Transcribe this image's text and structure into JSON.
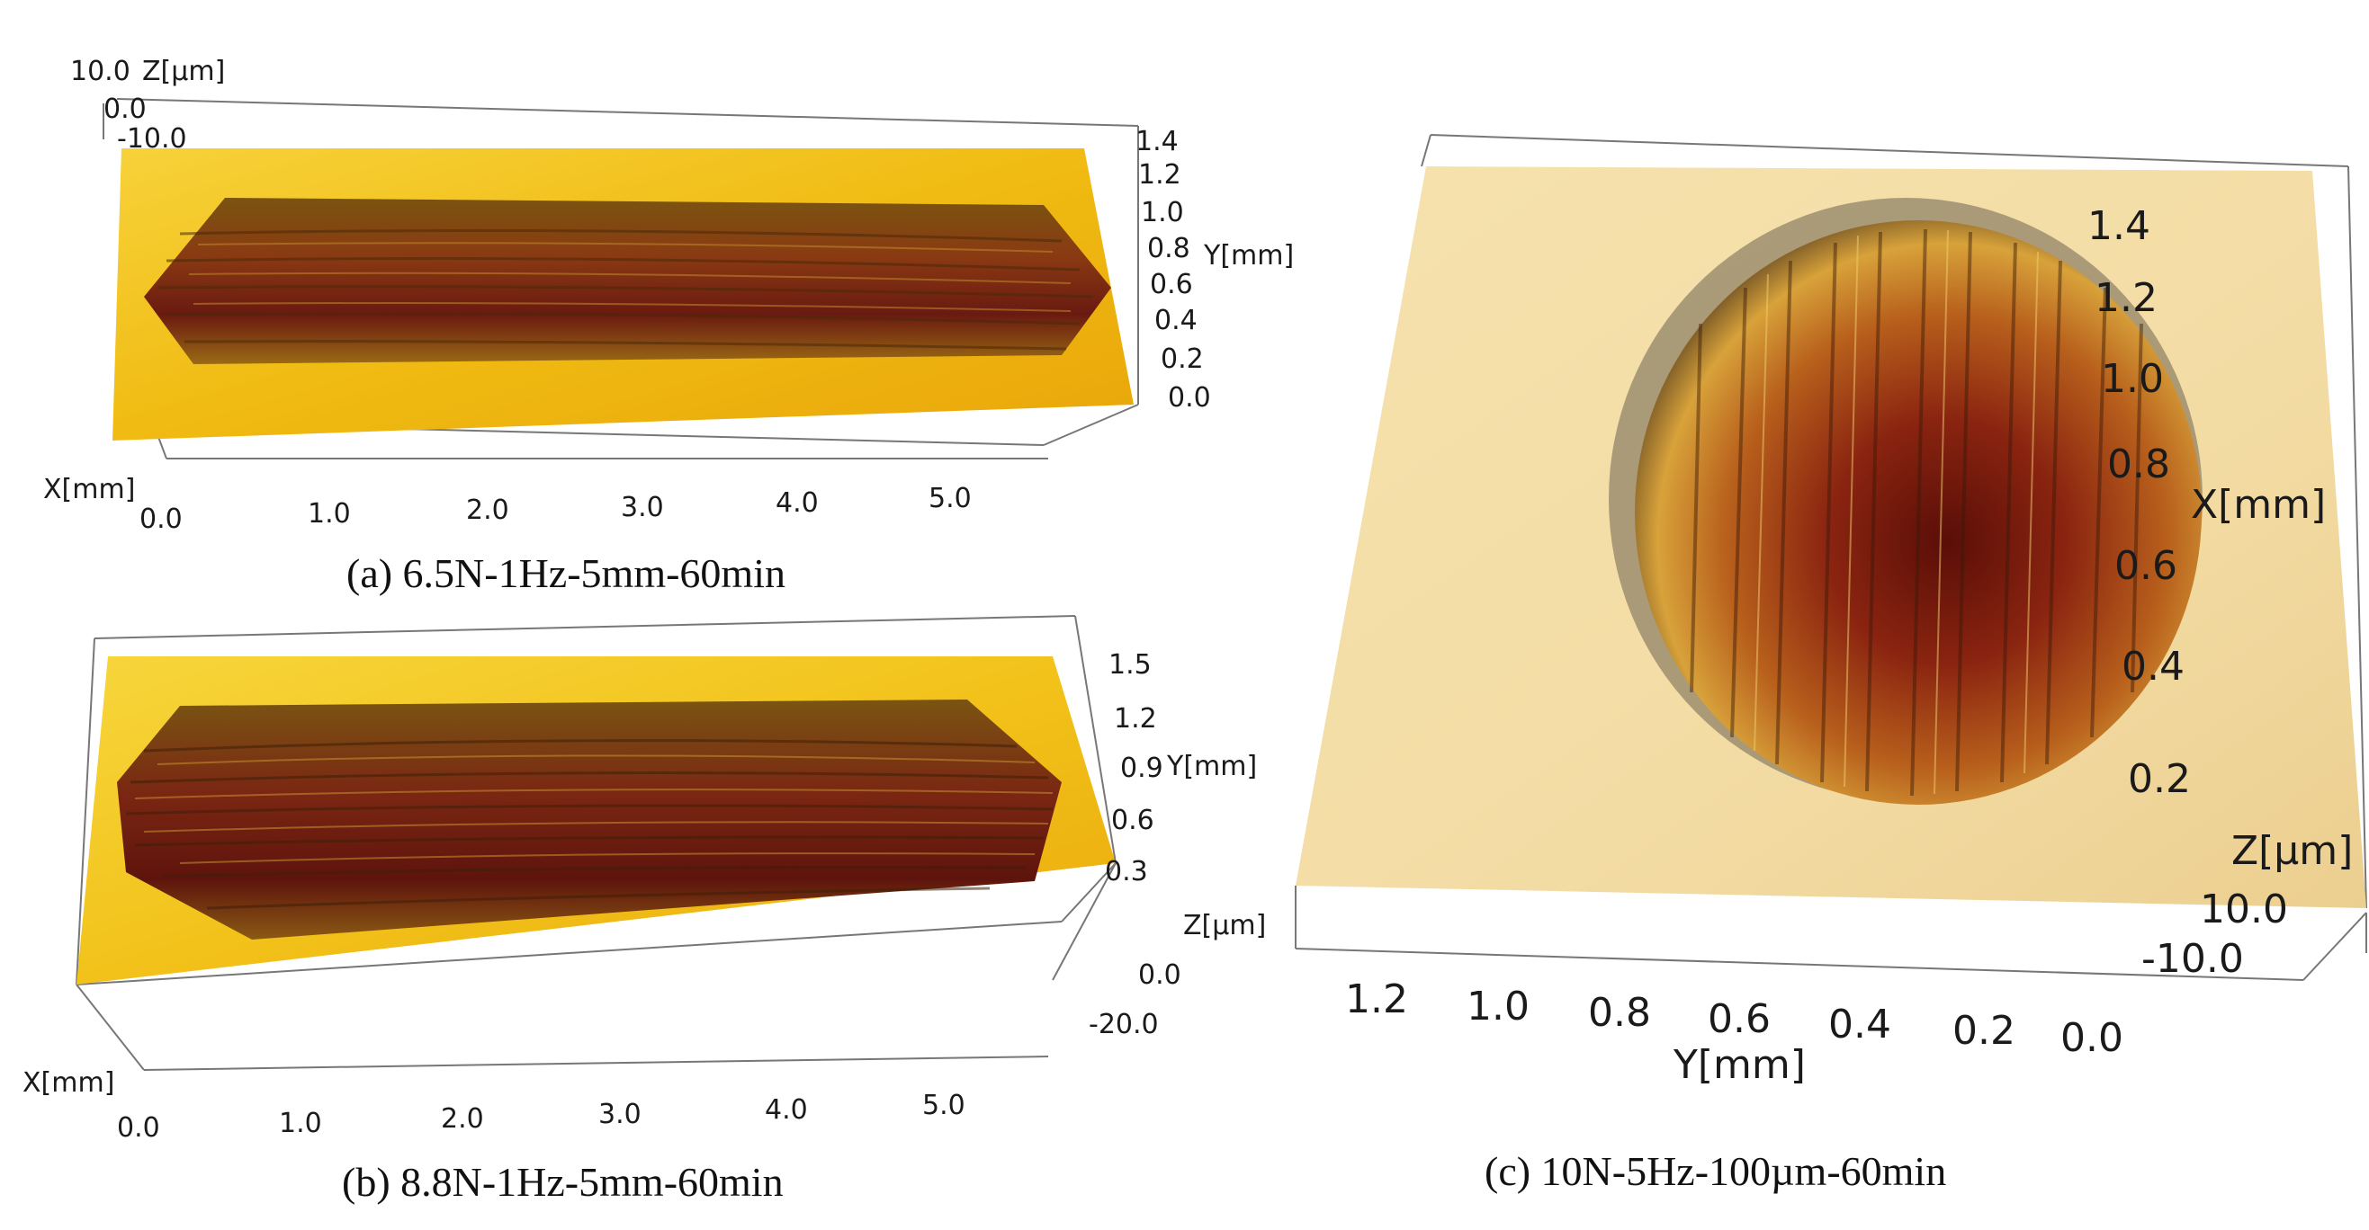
{
  "panels": {
    "a": {
      "caption": "(a) 6.5N-1Hz-5mm-60min",
      "z_axis": {
        "label": "Z[µm]",
        "ticks": [
          "10.0",
          "0.0",
          "-10.0"
        ]
      },
      "y_axis": {
        "label": "Y[mm]",
        "ticks": [
          "1.4",
          "1.2",
          "1.0",
          "0.8",
          "0.6",
          "0.4",
          "0.2",
          "0.0"
        ]
      },
      "x_axis": {
        "label": "X[mm]",
        "ticks": [
          "0.0",
          "1.0",
          "2.0",
          "3.0",
          "4.0",
          "5.0"
        ]
      }
    },
    "b": {
      "caption": "(b) 8.8N-1Hz-5mm-60min",
      "y_axis": {
        "label": "Y[mm]",
        "ticks": [
          "1.5",
          "1.2",
          "0.9",
          "0.6",
          "0.3"
        ]
      },
      "z_axis": {
        "label": "Z[µm]",
        "ticks": [
          "0.0",
          "-20.0"
        ]
      },
      "x_axis": {
        "label": "X[mm]",
        "ticks": [
          "0.0",
          "1.0",
          "2.0",
          "3.0",
          "4.0",
          "5.0"
        ]
      }
    },
    "c": {
      "caption": "(c) 10N-5Hz-100µm-60min",
      "x_axis": {
        "label": "X[mm]",
        "ticks": [
          "1.4",
          "1.2",
          "1.0",
          "0.8",
          "0.6",
          "0.4",
          "0.2"
        ]
      },
      "z_axis": {
        "label": "Z[µm]",
        "ticks": [
          "10.0",
          "-10.0"
        ]
      },
      "y_axis": {
        "label": "Y[mm]",
        "ticks": [
          "1.2",
          "1.0",
          "0.8",
          "0.6",
          "0.4",
          "0.2",
          "0.0"
        ]
      }
    }
  },
  "colors": {
    "surface_gold": "#f2c21a",
    "surface_cream": "#f6e2b0",
    "scar_dark": "#6a1a10",
    "scar_mid": "#a8401a"
  }
}
